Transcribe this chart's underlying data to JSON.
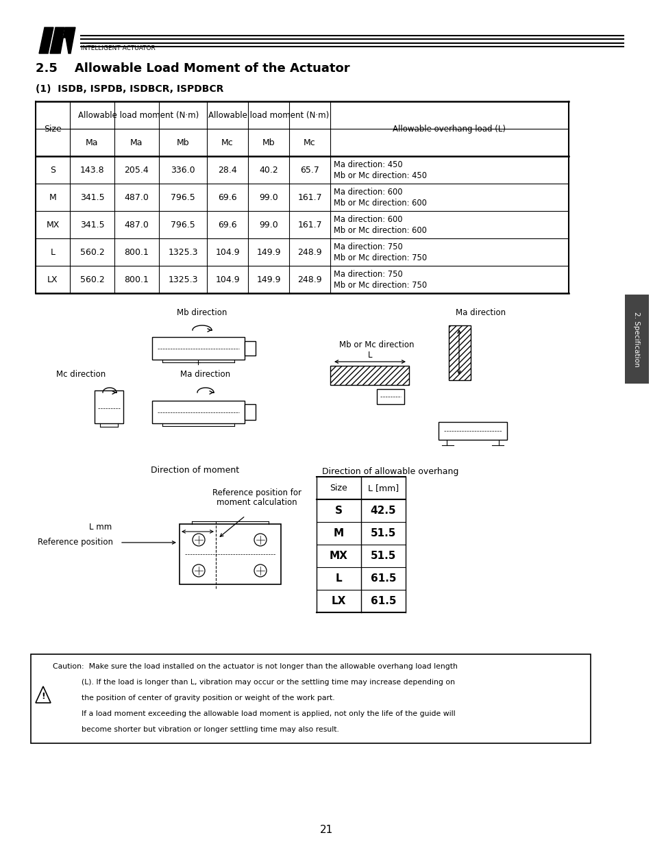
{
  "title_section": "2.5    Allowable Load Moment of the Actuator",
  "subtitle": "(1)  ISDB, ISPDB, ISDBCR, ISPDBCR",
  "table_data": [
    [
      "S",
      "143.8",
      "205.4",
      "336.0",
      "28.4",
      "40.2",
      "65.7",
      "Ma direction: 450\nMb or Mc direction: 450"
    ],
    [
      "M",
      "341.5",
      "487.0",
      "796.5",
      "69.6",
      "99.0",
      "161.7",
      "Ma direction: 600\nMb or Mc direction: 600"
    ],
    [
      "MX",
      "341.5",
      "487.0",
      "796.5",
      "69.6",
      "99.0",
      "161.7",
      "Ma direction: 600\nMb or Mc direction: 600"
    ],
    [
      "L",
      "560.2",
      "800.1",
      "1325.3",
      "104.9",
      "149.9",
      "248.9",
      "Ma direction: 750\nMb or Mc direction: 750"
    ],
    [
      "LX",
      "560.2",
      "800.1",
      "1325.3",
      "104.9",
      "149.9",
      "248.9",
      "Ma direction: 750\nMb or Mc direction: 750"
    ]
  ],
  "size_table_data": [
    [
      "S",
      "42.5"
    ],
    [
      "M",
      "51.5"
    ],
    [
      "MX",
      "51.5"
    ],
    [
      "L",
      "61.5"
    ],
    [
      "LX",
      "61.5"
    ]
  ],
  "caution_lines": [
    "Caution:  Make sure the load installed on the actuator is not longer than the allowable overhang load length",
    "            (L). If the load is longer than L, vibration may occur or the settling time may increase depending on",
    "            the position of center of gravity position or weight of the work part.",
    "            If a load moment exceeding the allowable load moment is applied, not only the life of the guide will",
    "            become shorter but vibration or longer settling time may also result."
  ],
  "page_number": "21",
  "side_label": "2. Specification",
  "bg_color": "#ffffff",
  "text_color": "#000000"
}
